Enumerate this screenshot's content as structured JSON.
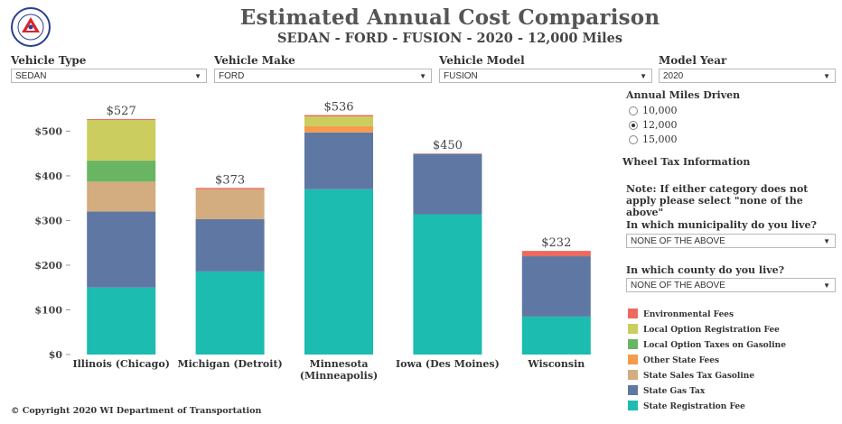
{
  "title": "Estimated Annual Cost Comparison",
  "subtitle": "SEDAN - FORD - FUSION - 2020 - 12,000 Miles",
  "logo": {
    "text": "WISCONSIN DEPARTMENT OF TRANSPORTATION",
    "icon": "wisdot-logo-icon"
  },
  "filters": [
    {
      "label": "Vehicle Type",
      "value": "SEDAN"
    },
    {
      "label": "Vehicle Make",
      "value": "FORD"
    },
    {
      "label": "Vehicle Model",
      "value": "FUSION"
    },
    {
      "label": "Model Year",
      "value": "2020"
    }
  ],
  "miles": {
    "label": "Annual Miles Driven",
    "options": [
      "10,000",
      "12,000",
      "15,000"
    ],
    "selected": "12,000"
  },
  "wheel_tax": {
    "heading": "Wheel Tax Information",
    "note": "Note: If either category does not apply please select \"none of the above\"",
    "municipality_label": "In which municipality do you live?",
    "municipality_value": "NONE OF THE ABOVE",
    "county_label": "In which county do you live?",
    "county_value": "NONE OF THE ABOVE"
  },
  "copyright": "©  Copyright 2020 WI Department of Transportation",
  "chart_data": {
    "type": "bar",
    "stacked": true,
    "categories": [
      "Illinois (Chicago)",
      "Michigan (Detroit)",
      "Minnesota (Minneapolis)",
      "Iowa (Des Moines)",
      "Wisconsin"
    ],
    "category_lines": [
      [
        "Illinois (Chicago)"
      ],
      [
        "Michigan (Detroit)"
      ],
      [
        "Minnesota",
        "(Minneapolis)"
      ],
      [
        "Iowa (Des Moines)"
      ],
      [
        "Wisconsin"
      ]
    ],
    "totals": [
      527,
      373,
      536,
      450,
      232
    ],
    "total_labels": [
      "$527",
      "$373",
      "$536",
      "$450",
      "$232"
    ],
    "series": [
      {
        "name": "State Registration Fee",
        "color": "#1dbcb0",
        "values": [
          150,
          186,
          370,
          314,
          85
        ]
      },
      {
        "name": "State Gas Tax",
        "color": "#5f77a3",
        "values": [
          170,
          117,
          127,
          135,
          135
        ]
      },
      {
        "name": "State Sales Tax Gasoline",
        "color": "#d3ac7f",
        "values": [
          67,
          67,
          0,
          0,
          0
        ]
      },
      {
        "name": "Other State Fees",
        "color": "#f59a4e",
        "values": [
          0,
          0,
          14,
          0,
          0
        ]
      },
      {
        "name": "Local Option Taxes on Gasoline",
        "color": "#6ab563",
        "values": [
          47,
          0,
          0,
          0,
          0
        ]
      },
      {
        "name": "Local Option Registration Fee",
        "color": "#cbcd5f",
        "values": [
          91,
          0,
          22,
          0,
          0
        ]
      },
      {
        "name": "Environmental Fees",
        "color": "#ec6a5e",
        "values": [
          2,
          3,
          3,
          1,
          12
        ]
      }
    ],
    "legend_order": [
      "Environmental Fees",
      "Local Option Registration Fee",
      "Local Option Taxes on Gasoline",
      "Other State Fees",
      "State Sales Tax Gasoline",
      "State Gas Tax",
      "State Registration Fee"
    ],
    "yticks": [
      0,
      100,
      200,
      300,
      400,
      500
    ],
    "ytick_labels": [
      "$0",
      "$100",
      "$200",
      "$300",
      "$400",
      "$500"
    ],
    "ylim": [
      0,
      540
    ],
    "xlabel": "",
    "ylabel": "",
    "legend": "right-bottom"
  }
}
